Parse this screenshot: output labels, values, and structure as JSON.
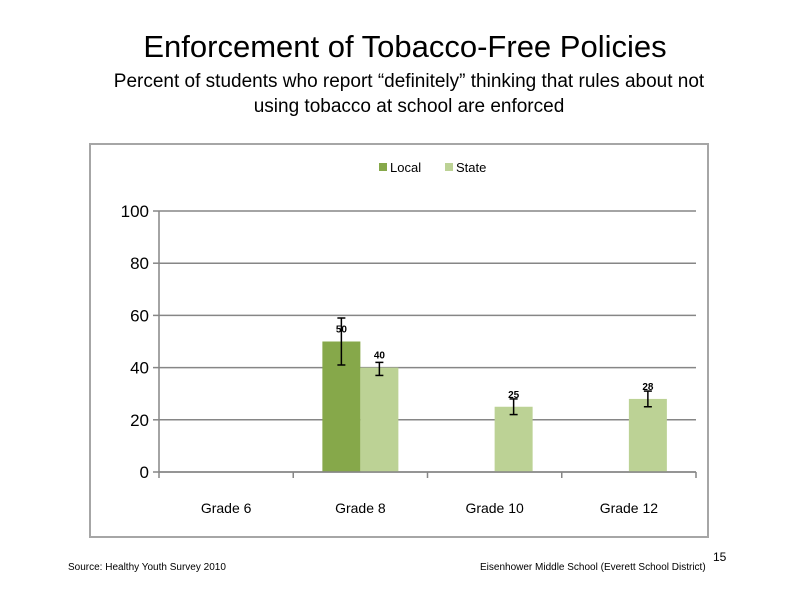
{
  "slide": {
    "title": "Enforcement of Tobacco-Free Policies",
    "subtitle": "Percent of students who report “definitely” thinking that rules about not using tobacco at school are enforced",
    "source": "Source: Healthy Youth Survey 2010",
    "school": "Eisenhower Middle  School (Everett School District)",
    "page_number": "15"
  },
  "chart_data": {
    "type": "bar",
    "title": "",
    "xlabel": "",
    "ylabel": "",
    "categories": [
      "Grade 6",
      "Grade 8",
      "Grade 10",
      "Grade 12"
    ],
    "ylim": [
      0,
      100
    ],
    "yticks": [
      0,
      20,
      40,
      60,
      80,
      100
    ],
    "grid": true,
    "legend_position": "top",
    "series": [
      {
        "name": "Local",
        "color": "#86a84a",
        "values": [
          null,
          50,
          null,
          null
        ],
        "labels": [
          "",
          "50",
          "",
          ""
        ],
        "error_low": [
          null,
          41,
          null,
          null
        ],
        "error_high": [
          null,
          59,
          null,
          null
        ]
      },
      {
        "name": "State",
        "color": "#bcd295",
        "values": [
          null,
          40,
          25,
          28
        ],
        "labels": [
          "",
          "40",
          "25",
          "28"
        ],
        "error_low": [
          null,
          37,
          22,
          25
        ],
        "error_high": [
          null,
          42,
          28,
          31
        ]
      }
    ]
  }
}
